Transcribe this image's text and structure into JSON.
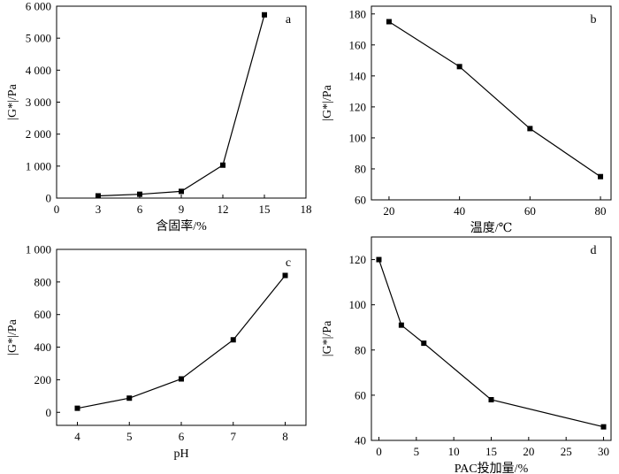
{
  "chart_data": [
    {
      "type": "line",
      "panel_label": "a",
      "xlabel": "含固率/%",
      "ylabel": "|G*|/Pa",
      "xlim": [
        0,
        18
      ],
      "ylim": [
        0,
        6000
      ],
      "x_ticks": [
        0,
        3,
        6,
        9,
        12,
        15,
        18
      ],
      "x_tick_labels": [
        "0",
        "3",
        "6",
        "9",
        "12",
        "15",
        "18"
      ],
      "y_ticks": [
        0,
        1000,
        2000,
        3000,
        4000,
        5000,
        6000
      ],
      "y_tick_labels": [
        "0",
        "1 000",
        "2 000",
        "3 000",
        "4 000",
        "5 000",
        "6 000"
      ],
      "x": [
        3,
        6,
        9,
        12,
        15
      ],
      "values": [
        70,
        120,
        210,
        1030,
        5730
      ]
    },
    {
      "type": "line",
      "panel_label": "b",
      "xlabel": "温度/℃",
      "ylabel": "|G*|/Pa",
      "xlim": [
        15,
        83
      ],
      "ylim": [
        60,
        185
      ],
      "x_ticks": [
        20,
        40,
        60,
        80
      ],
      "x_tick_labels": [
        "20",
        "40",
        "60",
        "80"
      ],
      "y_ticks": [
        60,
        80,
        100,
        120,
        140,
        160,
        180
      ],
      "y_tick_labels": [
        "60",
        "80",
        "100",
        "120",
        "140",
        "160",
        "180"
      ],
      "x": [
        20,
        40,
        60,
        80
      ],
      "values": [
        175,
        146,
        106,
        75
      ]
    },
    {
      "type": "line",
      "panel_label": "c",
      "xlabel": "pH",
      "ylabel": "|G*|/Pa",
      "xlim": [
        3.6,
        8.4
      ],
      "ylim": [
        -80,
        1000
      ],
      "x_ticks": [
        4,
        5,
        6,
        7,
        8
      ],
      "x_tick_labels": [
        "4",
        "5",
        "6",
        "7",
        "8"
      ],
      "y_ticks": [
        0,
        200,
        400,
        600,
        800,
        1000
      ],
      "y_tick_labels": [
        "0",
        "200",
        "400",
        "600",
        "800",
        "1 000"
      ],
      "x": [
        4,
        5,
        6,
        7,
        8
      ],
      "values": [
        25,
        87,
        205,
        445,
        840
      ]
    },
    {
      "type": "line",
      "panel_label": "d",
      "xlabel": "PAC投加量/%",
      "ylabel": "|G*|/Pa",
      "xlim": [
        -1,
        31
      ],
      "ylim": [
        40,
        130
      ],
      "x_ticks": [
        0,
        5,
        10,
        15,
        20,
        25,
        30
      ],
      "x_tick_labels": [
        "0",
        "5",
        "10",
        "15",
        "20",
        "25",
        "30"
      ],
      "y_ticks": [
        40,
        60,
        80,
        100,
        120
      ],
      "y_tick_labels": [
        "40",
        "60",
        "80",
        "100",
        "120"
      ],
      "x": [
        0,
        3,
        6,
        15,
        30
      ],
      "values": [
        120,
        91,
        83,
        58,
        46
      ]
    }
  ]
}
